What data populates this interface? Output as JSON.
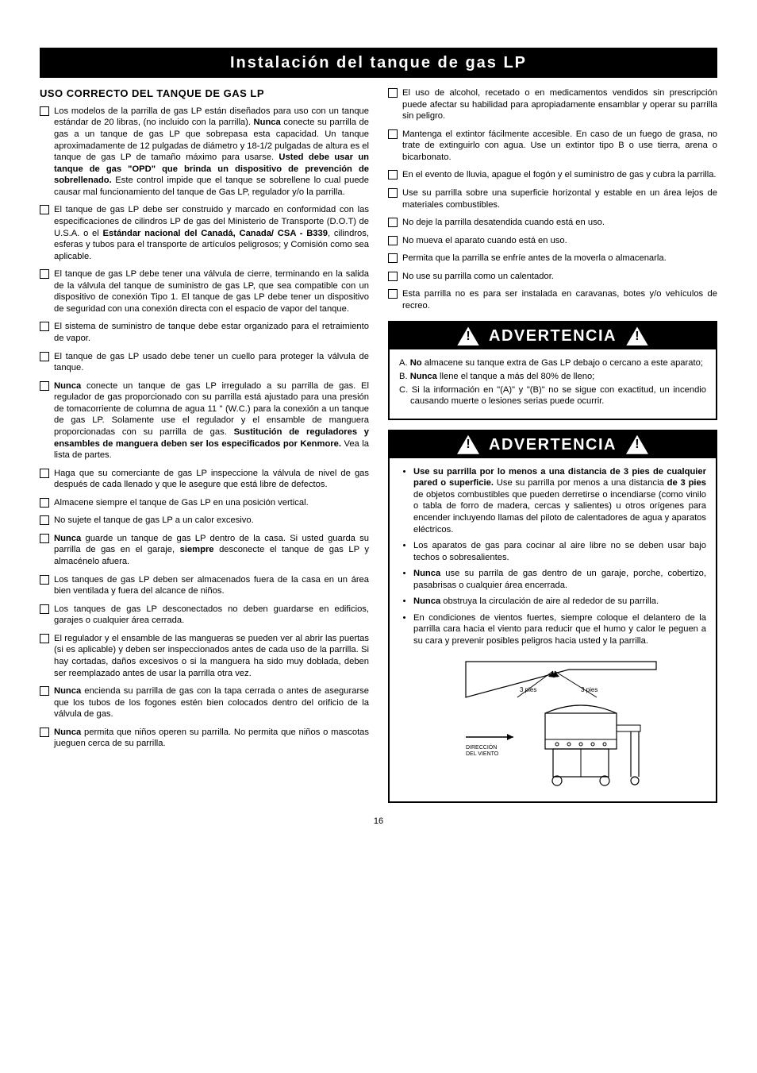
{
  "header": "Instalación del tanque de gas LP",
  "section_heading": "USO CORRECTO DEL TANQUE DE GAS LP",
  "left_items": [
    "Los modelos de la parrilla de gas LP están diseñados para uso con un tanque estándar de 20 libras, (no incluido con la parrilla). <b>Nunca</b> conecte su parrilla de gas a un tanque de gas LP que sobrepasa esta capacidad. Un tanque aproximadamente de 12 pulgadas de diámetro y 18-1/2 pulgadas de altura es el tanque de gas LP de tamaño máximo para usarse. <b>Usted debe usar un tanque de gas \"OPD\" que brinda un dispositivo de prevención de sobrellenado.</b> Este control impide que el tanque se sobrellene lo cual puede causar mal funcionamiento del tanque de Gas LP, regulador y/o la parrilla.",
    "El tanque de gas LP debe ser construido y marcado en conformidad con las especificaciones de cilindros LP de gas del Ministerio de Transporte (D.O.T) de U.S.A. o el <b>Estándar nacional del Canadá, Canada/ CSA - B339</b>, cilindros, esferas y tubos para el transporte de artículos peligrosos; y Comisión como sea aplicable.",
    "El tanque de gas LP debe tener una válvula de cierre, terminando en la salida de la válvula del tanque de suministro de gas LP, que sea compatible con un dispositivo de conexión Tipo 1. El tanque de gas LP debe tener un dispositivo de seguridad con una conexión directa con el espacio de vapor del tanque.",
    "El sistema de suministro de tanque debe estar organizado para el retraimiento de vapor.",
    "El tanque de gas LP usado debe tener un cuello para proteger la válvula de tanque.",
    "<b>Nunca</b> conecte un tanque de gas LP irregulado a su parrilla de gas. El regulador de gas proporcionado con su parrilla está ajustado para una presión de tomacorriente de columna de agua 11 \" (W.C.) para la conexión a un tanque de gas LP. Solamente use el regulador y el ensamble de manguera proporcionadas con su parrilla de gas. <b>Sustitución de reguladores y ensambles de manguera deben ser los especificados por Kenmore.</b> Vea la lista de partes.",
    "Haga que su comerciante de gas LP inspeccione la válvula de nivel de gas después de cada llenado y que le asegure que está libre de defectos.",
    "Almacene siempre el tanque de Gas LP en una posición vertical.",
    "No sujete el tanque de gas LP a un calor excesivo.",
    "<b>Nunca</b> guarde un tanque de gas LP dentro de la casa. Si usted guarda su parrilla de gas en el garaje, <b>siempre</b> desconecte el tanque de gas LP y almacénelo afuera.",
    "Los tanques de gas LP deben ser almacenados fuera de la casa en un área bien ventilada y fuera del alcance de niños.",
    "Los tanques de gas LP desconectados no deben guardarse en edificios, garajes o cualquier área cerrada.",
    "El regulador y el ensamble de las mangueras se pueden ver al abrir las puertas (si es aplicable) y deben ser inspeccionados antes de cada uso de la parrilla. Si hay cortadas, daños excesivos o si la manguera ha sido muy doblada, deben ser reemplazado antes de usar la parrilla otra vez.",
    "<b>Nunca</b> encienda su parrilla de gas con la tapa cerrada o antes de asegurarse que los tubos de los fogones estén bien colocados dentro del orificio de la válvula de gas.",
    "<b>Nunca</b> permita que niños operen su parrilla. No permita que niños o mascotas jueguen cerca de su parrilla."
  ],
  "right_items": [
    "El uso de alcohol, recetado o en medicamentos vendidos sin prescripción puede afectar su habilidad para apropiadamente ensamblar y operar su parrilla sin peligro.",
    "Mantenga el extintor fácilmente accesible. En caso de un fuego de grasa, no trate de extinguirlo con agua. Use un extintor tipo B o use tierra, arena o bicarbonato.",
    "En el evento de lluvia, apague el fogón y el suministro de gas y cubra la parrilla.",
    "Use su parrilla sobre una superficie horizontal y estable en un área lejos de materiales combustibles.",
    "No deje la parrilla desatendida cuando está en uso.",
    "No mueva el aparato cuando está en uso.",
    "Permita que la parrilla se enfríe antes de la moverla o almacenarla.",
    "No use su parrilla como un calentador.",
    "Esta parrilla no es para ser instalada en caravanas, botes y/o vehículos de recreo."
  ],
  "warn1_title": "ADVERTENCIA",
  "warn1_items": [
    "A. <b>No</b> almacene su tanque extra de Gas LP debajo o cercano a este aparato;",
    "B. <b>Nunca</b> llene el tanque a más del 80% de lleno;",
    "C. Si la información en \"(A)\" y \"(B)\" no se sigue con exactitud, un incendio causando muerte o lesiones serias puede ocurrir."
  ],
  "warn2_title": "ADVERTENCIA",
  "warn2_items": [
    "<b>Use su parrilla por lo menos a una distancia de 3 pies de cualquier pared o superficie.</b> Use su parrilla por menos a una distancia <b>de 3 pies</b> de objetos combustibles que pueden derretirse o incendiarse (como vinilo o tabla de forro de madera, cercas y salientes) u otros orígenes para encender incluyendo llamas del piloto de calentadores de agua y aparatos eléctricos.",
    "Los aparatos de gas para cocinar al aire libre no se deben usar bajo techos o sobresalientes.",
    "<b>Nunca</b> use su parrila de gas dentro de un garaje, porche, cobertizo, pasabrisas o cualquier área encerrada.",
    "<b>Nunca</b> obstruya la circulación de aire al rededor de su parrilla.",
    "En condiciones de vientos fuertes, siempre coloque el delantero de la parrilla cara hacia el viento para reducir que el humo y calor le peguen a su cara y prevenir posibles peligros hacia usted y la parrilla."
  ],
  "diagram_labels": {
    "left": "3 pies",
    "right": "3 pies",
    "wind": "DIRECCIÓN\nDEL VIENTO"
  },
  "page_number": "16"
}
